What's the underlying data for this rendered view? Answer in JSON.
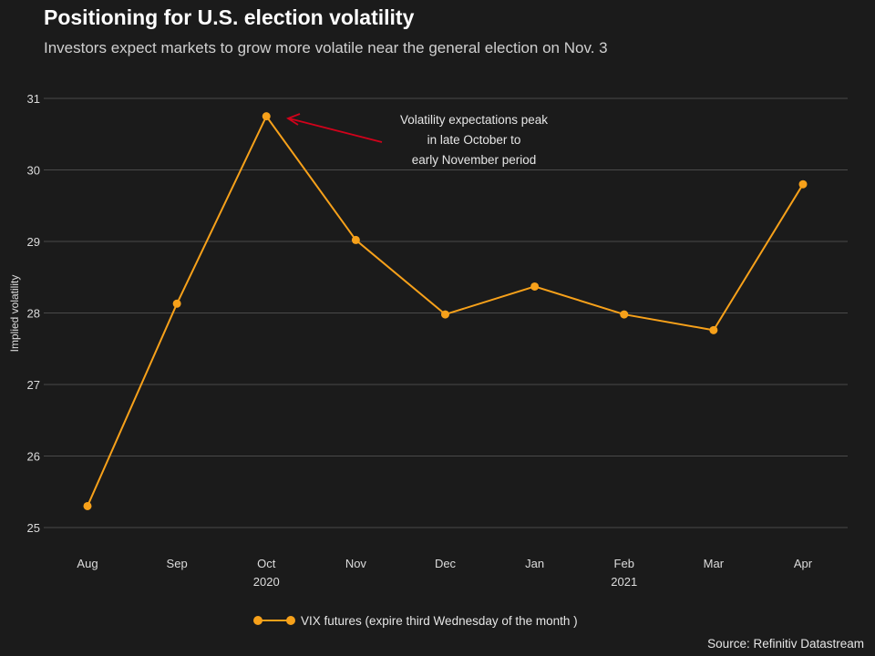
{
  "header": {
    "title": "Positioning for U.S. election volatility",
    "subtitle": "Investors expect markets to grow more volatile near the general election on Nov. 3"
  },
  "colors": {
    "background": "#1b1b1b",
    "series": "#f7a11a",
    "annotation_arrow": "#d0021b",
    "grid": "#4a4a4a"
  },
  "chart_data": {
    "type": "line",
    "categories": [
      "Aug",
      "Sep",
      "Oct",
      "Nov",
      "Dec",
      "Jan",
      "Feb",
      "Mar",
      "Apr"
    ],
    "year_labels": [
      {
        "label": "2020",
        "category": "Oct"
      },
      {
        "label": "2021",
        "category": "Feb"
      }
    ],
    "series": [
      {
        "name": "VIX futures (expire third Wednesday of the month )",
        "values": [
          25.3,
          28.13,
          30.75,
          29.02,
          27.98,
          28.37,
          27.98,
          27.76,
          29.8
        ]
      }
    ],
    "ylabel": "Implied volatility",
    "ylim": [
      25,
      31
    ],
    "yticks": [
      25,
      26,
      27,
      28,
      29,
      30,
      31
    ],
    "grid": true,
    "legend_position": "bottom-center",
    "annotation": {
      "lines": [
        "Volatility expectations peak",
        "in late October to",
        "early November period"
      ],
      "points_to": "Oct"
    }
  },
  "footer": {
    "source": "Source: Refinitiv Datastream"
  }
}
